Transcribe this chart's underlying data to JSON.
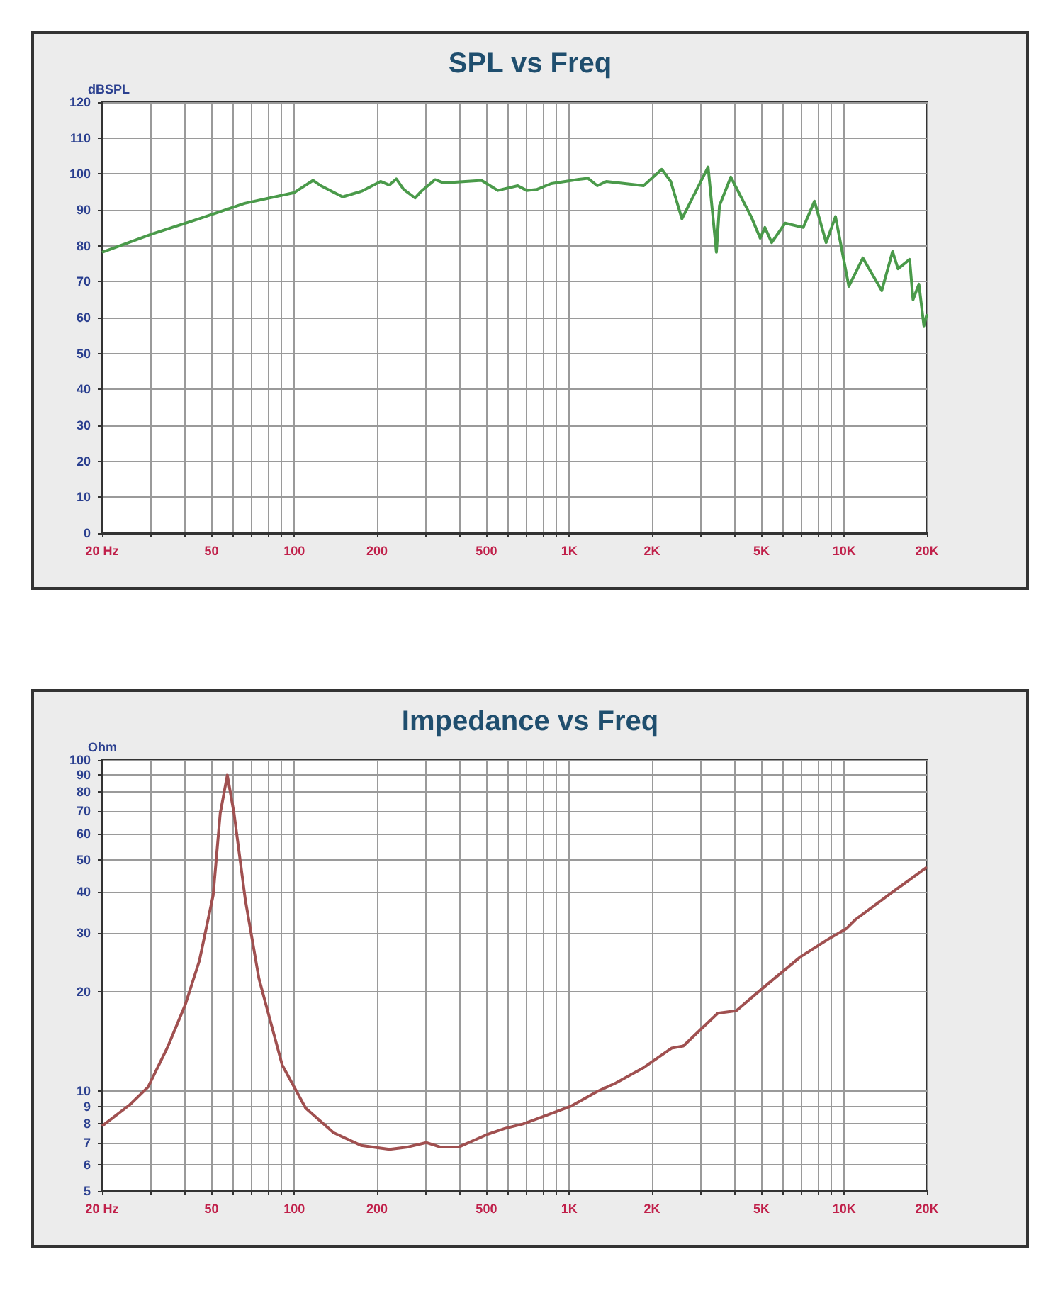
{
  "chart_data": [
    {
      "type": "line",
      "title": "SPL vs Freq",
      "ylabel": "dBSPL",
      "log": "x",
      "grid": true,
      "marker": "none",
      "xlim": [
        20,
        20000
      ],
      "xticks": [
        {
          "value": 20,
          "label": "20 Hz"
        },
        {
          "value": 30,
          "label": null
        },
        {
          "value": 40,
          "label": null
        },
        50,
        {
          "value": 60,
          "label": null
        },
        {
          "value": 70,
          "label": null
        },
        {
          "value": 80,
          "label": null
        },
        {
          "value": 90,
          "label": null
        },
        100,
        200,
        {
          "value": 300,
          "label": null
        },
        {
          "value": 400,
          "label": null
        },
        500,
        {
          "value": 600,
          "label": null
        },
        {
          "value": 700,
          "label": null
        },
        {
          "value": 800,
          "label": null
        },
        {
          "value": 900,
          "label": null
        },
        {
          "value": 1000,
          "label": "1K"
        },
        {
          "value": 2000,
          "label": "2K"
        },
        {
          "value": 3000,
          "label": null
        },
        {
          "value": 4000,
          "label": null
        },
        {
          "value": 5000,
          "label": "5K"
        },
        {
          "value": 6000,
          "label": null
        },
        {
          "value": 7000,
          "label": null
        },
        {
          "value": 8000,
          "label": null
        },
        {
          "value": 9000,
          "label": null
        },
        {
          "value": 10000,
          "label": "10K"
        },
        {
          "value": 20000,
          "label": "20K"
        }
      ],
      "ylim": [
        0,
        120
      ],
      "yticks": [
        0,
        10,
        20,
        30,
        40,
        50,
        60,
        70,
        80,
        90,
        100,
        110,
        120
      ],
      "series": [
        {
          "color": "#4a9a4a",
          "x": [
            20,
            30.5,
            45,
            66,
            100,
            117,
            125,
            150,
            176,
            206,
            222,
            235,
            250,
            275,
            290,
            325,
            350,
            480,
            550,
            650,
            700,
            764,
            860,
            1084,
            1170,
            1265,
            1365,
            1864,
            2170,
            2340,
            2570,
            3200,
            3430,
            3520,
            3870,
            4590,
            4950,
            5150,
            5450,
            6100,
            7100,
            7800,
            8600,
            9300,
            10400,
            11700,
            13700,
            15000,
            15700,
            17300,
            17800,
            18700,
            19500,
            20000
          ],
          "values": [
            78.2,
            83.3,
            87.5,
            91.8,
            94.8,
            98.2,
            96.7,
            93.6,
            95.2,
            97.9,
            96.9,
            98.6,
            95.7,
            93.3,
            95.2,
            98.4,
            97.5,
            98.2,
            95.4,
            96.7,
            95.4,
            95.7,
            97.3,
            98.5,
            98.8,
            96.7,
            97.9,
            96.7,
            101.3,
            97.9,
            87.5,
            101.9,
            78.2,
            91.2,
            99.1,
            88.1,
            82.1,
            85.1,
            80.9,
            86.3,
            85.1,
            92.4,
            80.9,
            88.1,
            68.7,
            76.6,
            67.5,
            78.4,
            73.6,
            76.2,
            65,
            69.3,
            57.7,
            61
          ]
        }
      ]
    },
    {
      "type": "line",
      "title": "Impedance vs Freq",
      "ylabel": "Ohm",
      "log": "xy",
      "grid": true,
      "marker": "none",
      "xlim": [
        20,
        20000
      ],
      "xticks": [
        {
          "value": 20,
          "label": "20 Hz"
        },
        {
          "value": 30,
          "label": null
        },
        {
          "value": 40,
          "label": null
        },
        50,
        {
          "value": 60,
          "label": null
        },
        {
          "value": 70,
          "label": null
        },
        {
          "value": 80,
          "label": null
        },
        {
          "value": 90,
          "label": null
        },
        100,
        200,
        {
          "value": 300,
          "label": null
        },
        {
          "value": 400,
          "label": null
        },
        500,
        {
          "value": 600,
          "label": null
        },
        {
          "value": 700,
          "label": null
        },
        {
          "value": 800,
          "label": null
        },
        {
          "value": 900,
          "label": null
        },
        {
          "value": 1000,
          "label": "1K"
        },
        {
          "value": 2000,
          "label": "2K"
        },
        {
          "value": 3000,
          "label": null
        },
        {
          "value": 4000,
          "label": null
        },
        {
          "value": 5000,
          "label": "5K"
        },
        {
          "value": 6000,
          "label": null
        },
        {
          "value": 7000,
          "label": null
        },
        {
          "value": 8000,
          "label": null
        },
        {
          "value": 9000,
          "label": null
        },
        {
          "value": 10000,
          "label": "10K"
        },
        {
          "value": 20000,
          "label": "20K"
        }
      ],
      "ylim": [
        5,
        100
      ],
      "yticks": [
        5,
        6,
        7,
        8,
        9,
        10,
        20,
        30,
        40,
        50,
        60,
        70,
        80,
        90,
        100
      ],
      "series": [
        {
          "color": "#a05050",
          "x": [
            20,
            25.2,
            29.4,
            34.5,
            40.2,
            45.2,
            50.7,
            53.8,
            57.1,
            60.4,
            66.4,
            74.4,
            90.4,
            110,
            139,
            175,
            222,
            259,
            302,
            339,
            397,
            500,
            585,
            680,
            1010,
            1270,
            1480,
            1870,
            2360,
            2600,
            3090,
            3470,
            4050,
            5100,
            6950,
            8770,
            10200,
            11000,
            15100,
            20000
          ],
          "values": [
            7.85,
            9.1,
            10.3,
            13.5,
            18.3,
            24.8,
            39,
            69,
            90,
            69,
            37.8,
            21.9,
            12,
            8.9,
            7.5,
            6.86,
            6.68,
            6.79,
            7,
            6.79,
            6.79,
            7.39,
            7.73,
            7.97,
            9,
            10,
            10.6,
            11.8,
            13.5,
            13.7,
            15.7,
            17.2,
            17.5,
            20.6,
            25.5,
            28.8,
            31,
            33,
            40.1,
            47.5
          ]
        }
      ]
    }
  ]
}
